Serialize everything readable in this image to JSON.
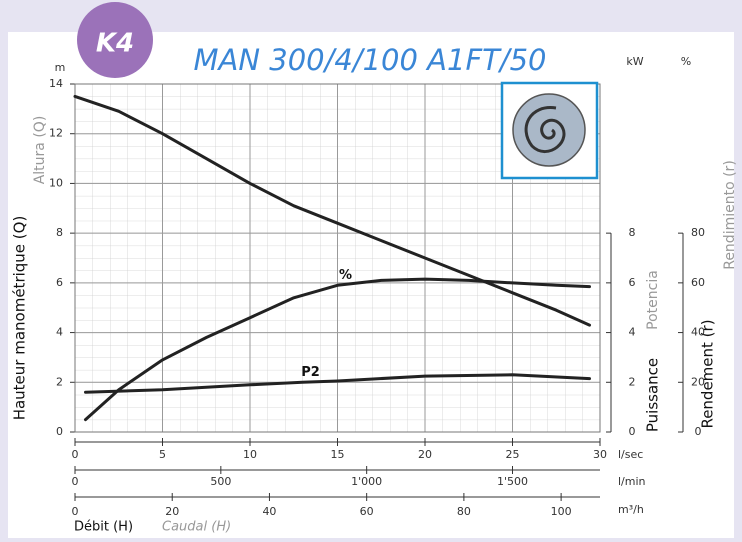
{
  "chart_data": {
    "type": "line",
    "badge": "K4",
    "title": "MAN 300/4/100 A1FT/50",
    "ylabel": "Hauteur manométrique (Q)",
    "ylabel_alt": "Altura (Q)",
    "y_unit": "m",
    "ylim": [
      0,
      14
    ],
    "yticks": [
      0,
      2,
      4,
      6,
      8,
      10,
      12,
      14
    ],
    "y2label": "Puissance",
    "y2label_alt": "Potencia",
    "y2_unit": "kW",
    "y2lim": [
      0,
      14
    ],
    "y2ticks": [
      0,
      2,
      4,
      6,
      8
    ],
    "y3label": "Rendement (r)",
    "y3label_alt": "Rendimiento (r)",
    "y3_unit": "%",
    "y3lim": [
      0,
      140
    ],
    "y3ticks": [
      0,
      20,
      40,
      60,
      80
    ],
    "xlabel": "Débit (H)",
    "xlabel_alt": "Caudal (H)",
    "x_unit": "l/sec",
    "xlim": [
      0,
      30
    ],
    "xticks": [
      0,
      5,
      10,
      15,
      20,
      25,
      30
    ],
    "x2_unit": "l/min",
    "x2lim": [
      0,
      1800
    ],
    "x2ticks": [
      0,
      500,
      {
        "value": 1000,
        "label": "1'000"
      },
      {
        "value": 1500,
        "label": "1'500"
      }
    ],
    "x3_unit": "m³/h",
    "x3lim": [
      0,
      108
    ],
    "x3ticks": [
      0,
      20,
      40,
      60,
      80,
      100
    ],
    "grid": true,
    "series": [
      {
        "color": "#222222",
        "axis": "y",
        "x": [
          0,
          2.5,
          5,
          7.5,
          10,
          12.5,
          15,
          17.5,
          20,
          22.5,
          25,
          27.5,
          29.4
        ],
        "values": [
          13.5,
          12.9,
          12.0,
          11.0,
          10.0,
          9.1,
          8.4,
          7.7,
          7.0,
          6.3,
          5.6,
          4.9,
          4.3
        ]
      },
      {
        "name": "%",
        "color": "#222222",
        "axis": "y3",
        "x": [
          0.6,
          2.5,
          5,
          7.5,
          10,
          12.5,
          15,
          17.5,
          20,
          22.5,
          25,
          27.5,
          29.4
        ],
        "values": [
          5,
          17,
          29,
          38,
          46,
          54,
          59,
          61,
          61.5,
          61,
          60,
          59,
          58.5
        ]
      },
      {
        "name": "P2",
        "color": "#222222",
        "axis": "y2",
        "x": [
          0.6,
          5,
          10,
          13,
          15,
          20,
          25,
          29.4
        ],
        "values": [
          1.6,
          1.7,
          1.9,
          2.0,
          2.05,
          2.25,
          2.3,
          2.15
        ]
      }
    ]
  }
}
